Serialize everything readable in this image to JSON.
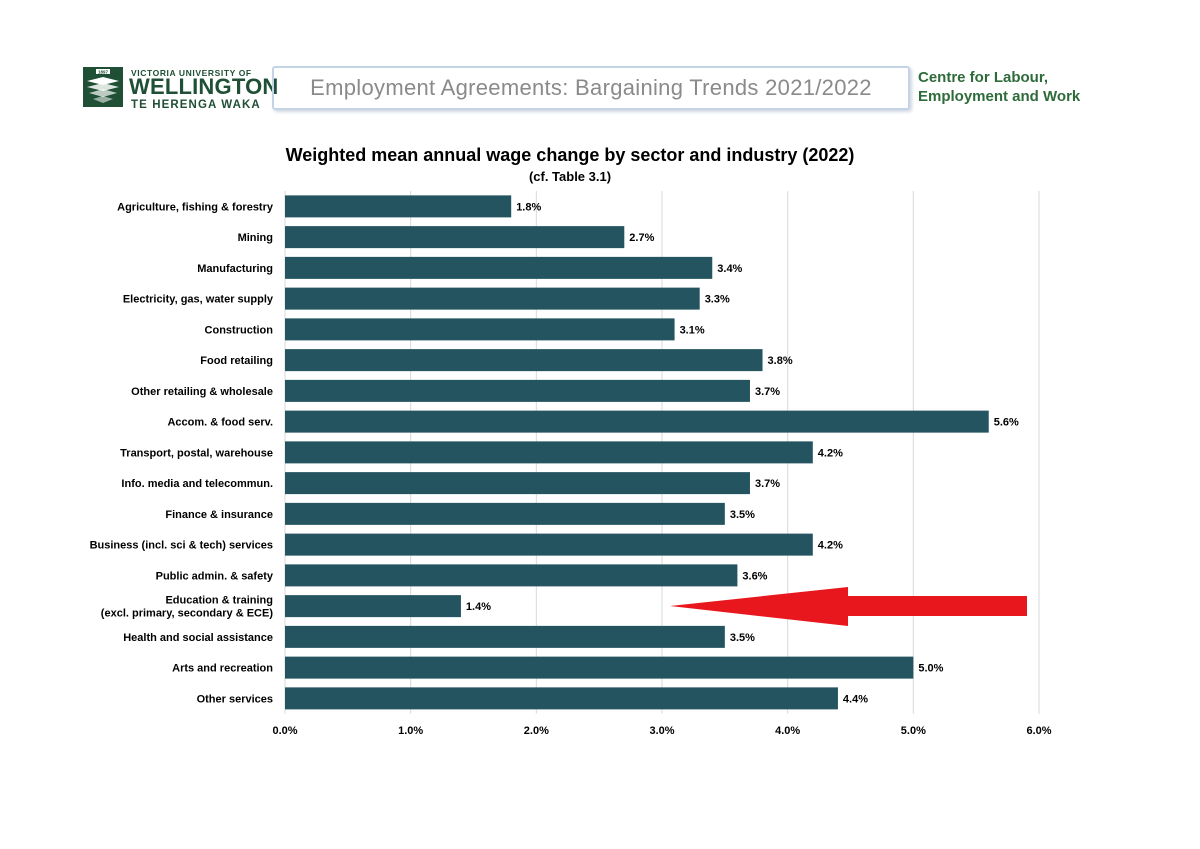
{
  "header": {
    "university_top": "VICTORIA UNIVERSITY OF",
    "university_main": "WELLINGTON",
    "university_sub": "TE HERENGA WAKA",
    "logo_badge": "1897",
    "report_title": "Employment Agreements: Bargaining Trends 2021/2022",
    "centre_line1": "Centre for Labour,",
    "centre_line2": "Employment and Work"
  },
  "colors": {
    "bar": "#23545f",
    "arrow": "#e8171e",
    "logo_green": "#1f4f35",
    "gridline": "#d9d9d9"
  },
  "chart_data": {
    "type": "bar",
    "orientation": "horizontal",
    "title": "Weighted mean annual wage change by sector and industry (2022)",
    "subtitle": "(cf. Table 3.1)",
    "xlabel": "",
    "ylabel": "",
    "xlim": [
      0,
      6
    ],
    "x_ticks": [
      "0.0%",
      "1.0%",
      "2.0%",
      "3.0%",
      "4.0%",
      "5.0%",
      "6.0%"
    ],
    "grid": "vertical",
    "legend": "none",
    "categories": [
      [
        "Agriculture, fishing & forestry"
      ],
      [
        "Mining"
      ],
      [
        "Manufacturing"
      ],
      [
        "Electricity, gas, water supply"
      ],
      [
        "Construction"
      ],
      [
        "Food retailing"
      ],
      [
        "Other retailing & wholesale"
      ],
      [
        "Accom. & food serv."
      ],
      [
        "Transport, postal, warehouse"
      ],
      [
        "Info. media and telecommun."
      ],
      [
        "Finance & insurance"
      ],
      [
        "Business (incl. sci & tech) services"
      ],
      [
        "Public admin. & safety"
      ],
      [
        "Education & training",
        "(excl. primary, secondary & ECE)"
      ],
      [
        "Health and social assistance"
      ],
      [
        "Arts and recreation"
      ],
      [
        "Other services"
      ]
    ],
    "values": [
      1.8,
      2.7,
      3.4,
      3.3,
      3.1,
      3.8,
      3.7,
      5.6,
      4.2,
      3.7,
      3.5,
      4.2,
      3.6,
      1.4,
      3.5,
      5.0,
      4.4
    ],
    "value_labels": [
      "1.8%",
      "2.7%",
      "3.4%",
      "3.3%",
      "3.1%",
      "3.8%",
      "3.7%",
      "5.6%",
      "4.2%",
      "3.7%",
      "3.5%",
      "4.2%",
      "3.6%",
      "1.4%",
      "3.5%",
      "5.0%",
      "4.4%"
    ],
    "annotations": [
      {
        "type": "arrow",
        "points_to": "Education & training",
        "color": "#e8171e"
      }
    ]
  }
}
